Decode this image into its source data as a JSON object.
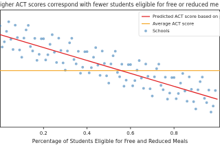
{
  "chart_data": {
    "type": "scatter",
    "title": "igher ACT scores correspond with fewer students eligible for free or reduced me",
    "x_label": "Percentage of Students Eligible for Free and Reduced Meals",
    "xlim": [
      0,
      1.005
    ],
    "xticks": [
      0.2,
      0.4,
      0.6,
      0.8
    ],
    "ylim": [
      12,
      28
    ],
    "legend": "upper right",
    "series": [
      {
        "name": "Predicted ACT score based on poverty",
        "type": "line",
        "color": "#e0191c",
        "x": [
          0,
          1
        ],
        "values": [
          24.6,
          15.8
        ]
      },
      {
        "name": "Average ACT score",
        "type": "hline",
        "color": "#f5a623",
        "values": [
          19.7
        ]
      },
      {
        "name": "Schools",
        "type": "scatter",
        "color": "#3a7fb8",
        "x": [
          0,
          0.02,
          0.04,
          0.06,
          0.08,
          0.1,
          0.12,
          0.14,
          0.16,
          0.18,
          0.2,
          0.22,
          0.24,
          0.26,
          0.28,
          0.3,
          0.32,
          0.34,
          0.36,
          0.38,
          0.4,
          0.42,
          0.44,
          0.46,
          0.48,
          0.5,
          0.52,
          0.54,
          0.56,
          0.58,
          0.6,
          0.62,
          0.64,
          0.66,
          0.68,
          0.7,
          0.72,
          0.74,
          0.76,
          0.78,
          0.8,
          0.82,
          0.84,
          0.86,
          0.88,
          0.9,
          0.92,
          0.94,
          0.96,
          0.98,
          0.01,
          0.03,
          0.05,
          0.07,
          0.09,
          0.11,
          0.13,
          0.15,
          0.17,
          0.19,
          0.21,
          0.23,
          0.25,
          0.27,
          0.29,
          0.31,
          0.33,
          0.35,
          0.37,
          0.39,
          0.41,
          0.43,
          0.45,
          0.47,
          0.49,
          0.51,
          0.53,
          0.55,
          0.57,
          0.59,
          0.61,
          0.63,
          0.65,
          0.67,
          0.69,
          0.71,
          0.73,
          0.75,
          0.77,
          0.79,
          0.81,
          0.83,
          0.85,
          0.87,
          0.89,
          0.91,
          0.93,
          0.95,
          0.97,
          0.99
        ],
        "values": [
          25.8,
          23.62,
          26.35,
          22.57,
          24.2,
          21.52,
          25.24,
          22.97,
          24.09,
          21.92,
          24.04,
          21.86,
          24.59,
          20.81,
          22.44,
          19.76,
          23.48,
          21.21,
          22.33,
          20.16,
          22.28,
          20.1,
          22.83,
          19.05,
          20.68,
          18.0,
          21.72,
          19.45,
          20.57,
          18.4,
          20.52,
          18.34,
          21.07,
          17.29,
          18.92,
          16.24,
          19.96,
          17.69,
          18.81,
          16.64,
          18.76,
          16.58,
          19.31,
          15.53,
          17.16,
          14.48,
          18.2,
          15.93,
          17.05,
          14.88,
          22.91,
          25.04,
          23.96,
          25.88,
          22.51,
          24.13,
          25.86,
          22.38,
          21.1,
          24.03,
          21.15,
          23.28,
          22.2,
          24.12,
          20.75,
          22.37,
          24.1,
          20.62,
          19.34,
          22.27,
          19.39,
          21.52,
          20.44,
          22.36,
          18.99,
          20.61,
          22.34,
          18.86,
          17.58,
          20.51,
          17.63,
          19.76,
          18.68,
          20.6,
          17.23,
          18.85,
          20.58,
          17.1,
          15.82,
          18.75,
          15.87,
          18.0,
          16.92,
          18.84,
          15.47,
          17.09,
          18.82,
          15.34,
          14.06,
          16.99
        ]
      }
    ]
  }
}
